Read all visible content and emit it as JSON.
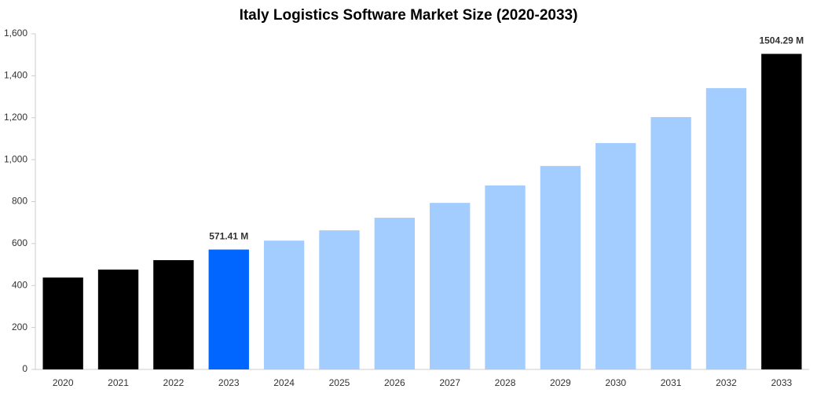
{
  "chart_data": {
    "type": "bar",
    "title": "Italy Logistics Software Market Size (2020-2033)",
    "categories": [
      "2020",
      "2021",
      "2022",
      "2023",
      "2024",
      "2025",
      "2026",
      "2027",
      "2028",
      "2029",
      "2030",
      "2031",
      "2032",
      "2033"
    ],
    "values": [
      438,
      476,
      521,
      571.41,
      614,
      663,
      723,
      794,
      877,
      970,
      1079,
      1203,
      1341,
      1504.29
    ],
    "value_labels": [
      null,
      null,
      null,
      "571.41 M",
      null,
      null,
      null,
      null,
      null,
      null,
      null,
      null,
      null,
      "1504.29 M"
    ],
    "colors": [
      "#000000",
      "#000000",
      "#000000",
      "#0066ff",
      "#a3cdfe",
      "#a3cdfe",
      "#a3cdfe",
      "#a3cdfe",
      "#a3cdfe",
      "#a3cdfe",
      "#a3cdfe",
      "#a3cdfe",
      "#a3cdfe",
      "#000000"
    ],
    "ylim": [
      0,
      1600
    ],
    "yticks": [
      0,
      200,
      400,
      600,
      800,
      {
        "value": 1000,
        "label": "1,000"
      },
      {
        "value": 1200,
        "label": "1,200"
      },
      {
        "value": 1400,
        "label": "1,400"
      },
      {
        "value": 1600,
        "label": "1,600"
      }
    ],
    "grid": false
  }
}
